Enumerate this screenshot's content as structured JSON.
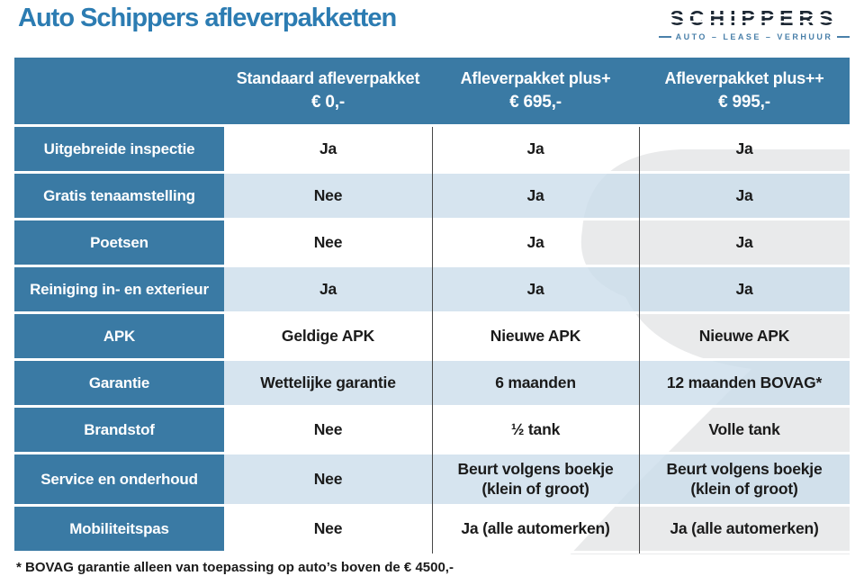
{
  "page": {
    "title": "Auto Schippers afleverpakketten"
  },
  "logo": {
    "name": "SCHIPPERS",
    "tagline": "AUTO – LEASE – VERHUUR"
  },
  "table": {
    "columns": [
      {
        "label": "",
        "price": ""
      },
      {
        "label": "Standaard afleverpakket",
        "price": "€ 0,-"
      },
      {
        "label": "Afleverpakket plus+",
        "price": "€ 695,-"
      },
      {
        "label": "Afleverpakket plus++",
        "price": "€ 995,-"
      }
    ],
    "rows": [
      {
        "feature": "Uitgebreide inspectie",
        "values": [
          "Ja",
          "Ja",
          "Ja"
        ]
      },
      {
        "feature": "Gratis tenaamstelling",
        "values": [
          "Nee",
          "Ja",
          "Ja"
        ]
      },
      {
        "feature": "Poetsen",
        "values": [
          "Nee",
          "Ja",
          "Ja"
        ]
      },
      {
        "feature": "Reiniging in- en exterieur",
        "values": [
          "Ja",
          "Ja",
          "Ja"
        ]
      },
      {
        "feature": "APK",
        "values": [
          "Geldige APK",
          "Nieuwe APK",
          "Nieuwe APK"
        ]
      },
      {
        "feature": "Garantie",
        "values": [
          "Wettelijke garantie",
          "6 maanden",
          "12 maanden BOVAG*"
        ]
      },
      {
        "feature": "Brandstof",
        "values": [
          "Nee",
          "½ tank",
          "Volle tank"
        ]
      },
      {
        "feature": "Service en onderhoud",
        "values": [
          "Nee",
          "Beurt volgens boekje (klein of groot)",
          "Beurt volgens boekje (klein of groot)"
        ]
      },
      {
        "feature": "Mobiliteitspas",
        "values": [
          "Nee",
          "Ja (alle automerken)",
          "Ja (alle automerken)"
        ]
      }
    ]
  },
  "footnote": "* BOVAG garantie alleen van toepassing op auto’s boven de € 4500,-",
  "colors": {
    "table_blue": "#3a7aa4",
    "row_light_blue": "#d6e4ee",
    "title_blue": "#2c7cb2",
    "logo_dark": "#1d2834",
    "logo_blue": "#4a80aa",
    "watermark_gray": "#e9eaeb",
    "divider_gray": "#474747",
    "text_dark": "#1b1b1b"
  }
}
